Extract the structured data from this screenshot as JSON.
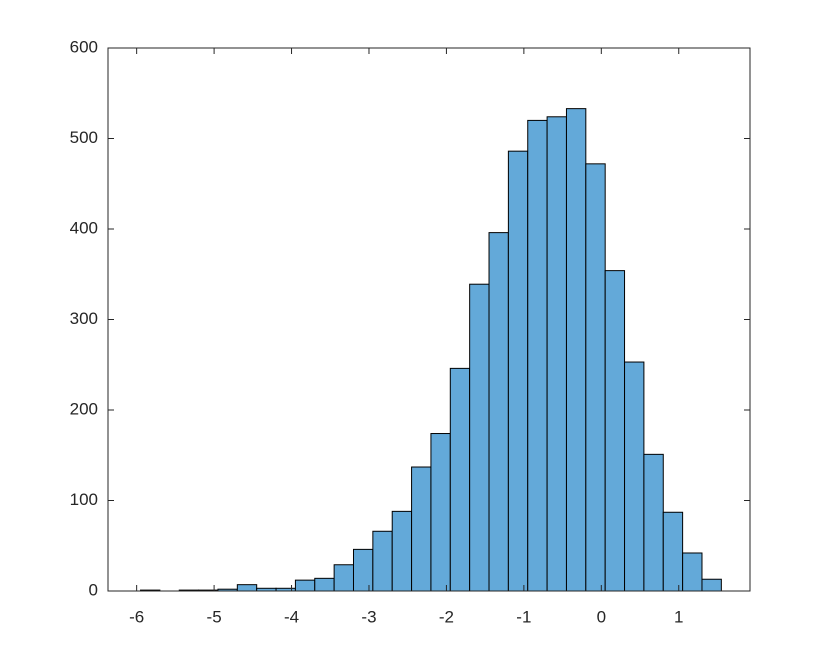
{
  "chart_data": {
    "type": "histogram",
    "bins": [
      -5.95,
      -5.7,
      -5.45,
      -5.2,
      -4.95,
      -4.7,
      -4.45,
      -4.2,
      -3.95,
      -3.7,
      -3.45,
      -3.2,
      -2.95,
      -2.7,
      -2.45,
      -2.2,
      -1.95,
      -1.7,
      -1.45,
      -1.2,
      -0.95,
      -0.7,
      -0.45,
      -0.2,
      0.05,
      0.3,
      0.55,
      0.8,
      1.05,
      1.3,
      1.55
    ],
    "values": [
      1,
      0,
      1,
      1,
      2,
      7,
      3,
      3,
      12,
      14,
      29,
      46,
      66,
      88,
      137,
      174,
      246,
      339,
      396,
      486,
      520,
      524,
      533,
      472,
      354,
      253,
      151,
      87,
      42,
      13
    ],
    "color": "#63a9d9",
    "xlim": [
      -6.37,
      1.92
    ],
    "ylim": [
      0,
      600
    ],
    "xticks": [
      -6,
      -5,
      -4,
      -3,
      -2,
      -1,
      0,
      1
    ],
    "yticks": [
      0,
      100,
      200,
      300,
      400,
      500,
      600
    ]
  }
}
